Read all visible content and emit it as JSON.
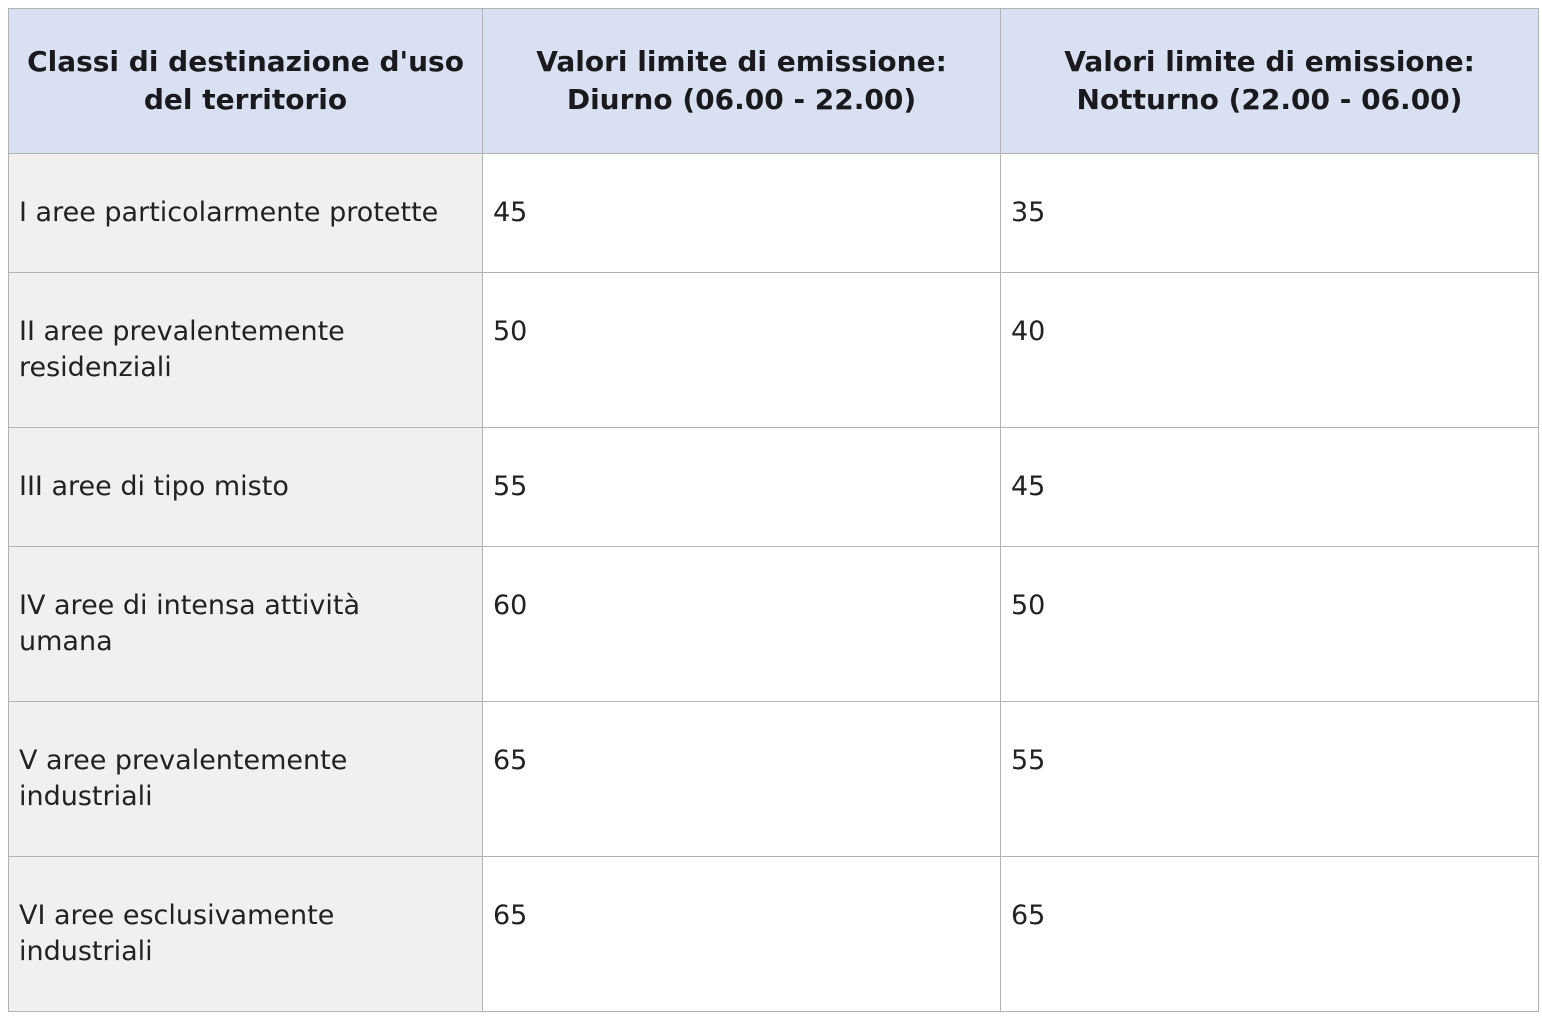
{
  "chart_data": {
    "type": "table",
    "columns": [
      "Classi di destinazione d'uso\ndel territorio",
      "Valori limite di emissione:\nDiurno (06.00 - 22.00)",
      "Valori limite di emissione:\nNotturno (22.00 - 06.00)"
    ],
    "rows": [
      [
        "I aree particolarmente protette",
        45,
        35
      ],
      [
        "II aree prevalentemente\nresidenziali",
        50,
        40
      ],
      [
        "III aree di tipo misto",
        55,
        45
      ],
      [
        "IV aree di intensa attività\numana",
        60,
        50
      ],
      [
        "V aree prevalentemente\nindustriali",
        65,
        55
      ],
      [
        "VI aree esclusivamente\nindustriali",
        65,
        65
      ]
    ],
    "colors": {
      "header_bg": "#d8e0f1",
      "row_label_bg": "#f0f0f0",
      "value_bg": "#ffffff",
      "border_color": "#b3b3b3",
      "text_color": "#222222",
      "header_text_color": "#1a1a1e"
    },
    "layout": {
      "legend": "none",
      "grid": "full-borders",
      "header_position": "top"
    }
  }
}
